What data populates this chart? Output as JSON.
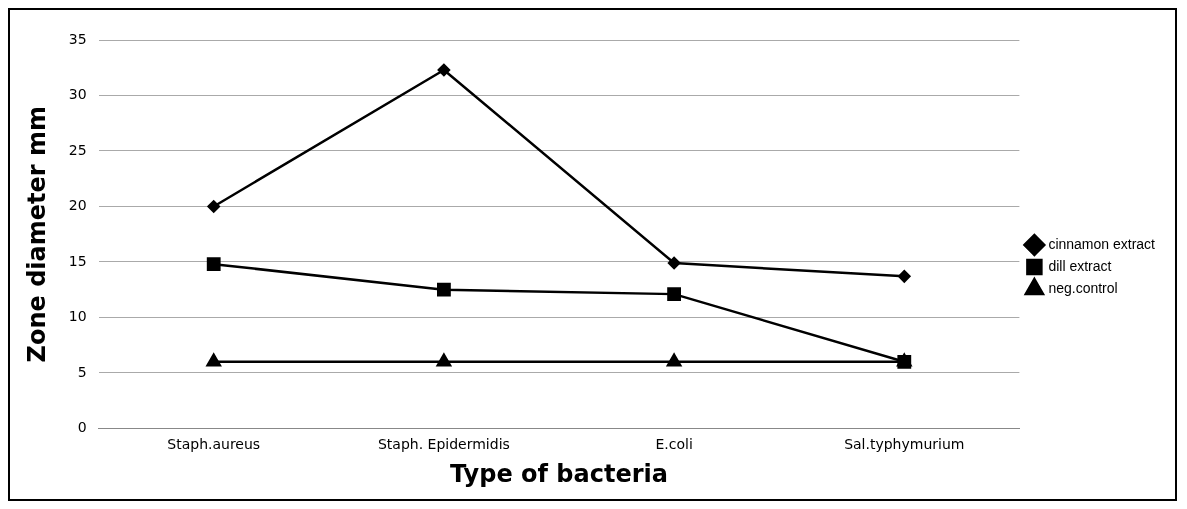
{
  "chart_data": {
    "type": "line",
    "xlabel": "Type of bacteria",
    "ylabel": "Zone diameter mm",
    "categories": [
      "Staph.aureus",
      "Staph. Epidermidis",
      "E.coli",
      "Sal.typhymurium"
    ],
    "series": [
      {
        "name": "cinnamon extract",
        "color": "#000000",
        "marker": "diamond",
        "values": [
          20,
          32.3,
          14.9,
          13.7
        ]
      },
      {
        "name": "dill extract",
        "color": "#000000",
        "marker": "square",
        "values": [
          14.8,
          12.5,
          12.1,
          6
        ]
      },
      {
        "name": "neg.control",
        "color": "#000000",
        "marker": "triangle",
        "values": [
          6,
          6,
          6,
          6
        ]
      }
    ],
    "ylim": [
      0,
      35
    ],
    "yticks": [
      0,
      5,
      10,
      15,
      20,
      25,
      30,
      35
    ],
    "grid": "y",
    "legend": "right",
    "line_style": "solid"
  }
}
